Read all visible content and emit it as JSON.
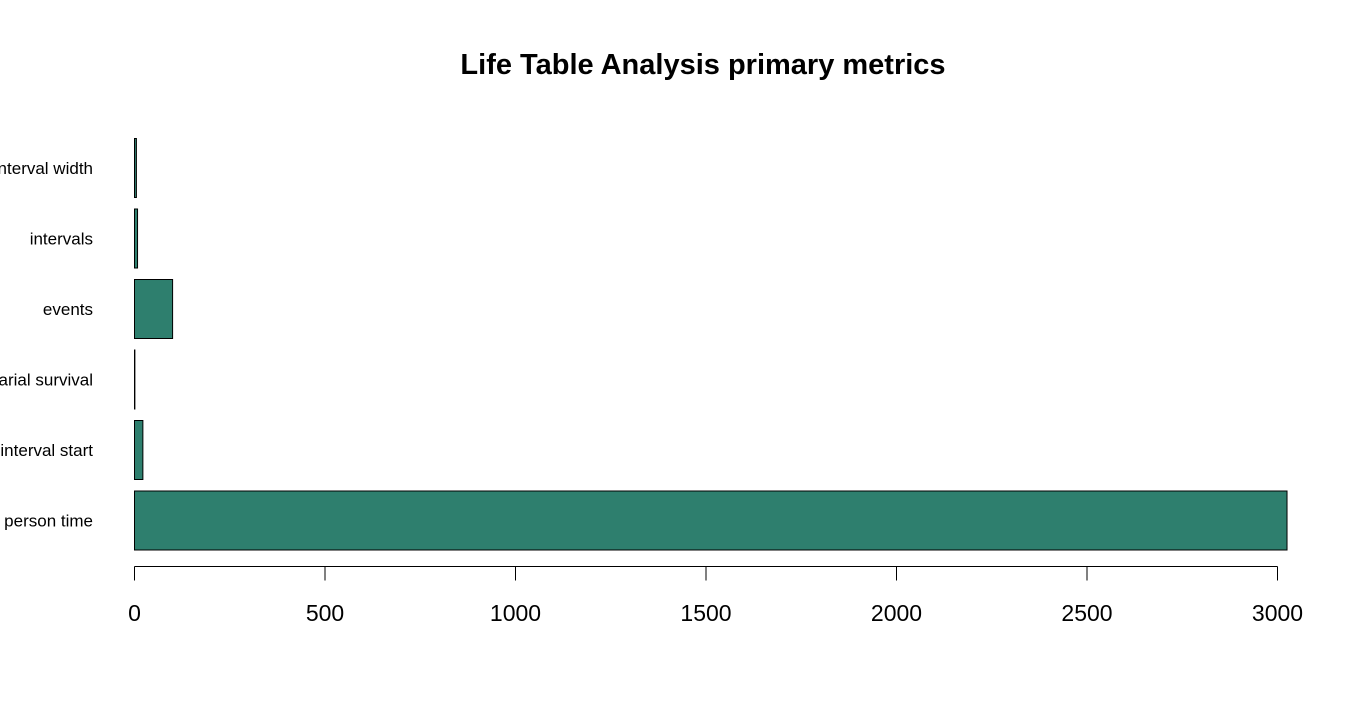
{
  "chart_data": {
    "type": "bar",
    "orientation": "horizontal",
    "title": "Life Table Analysis primary metrics",
    "xlabel": "",
    "ylabel": "",
    "categories": [
      "person time",
      "interval start",
      "arial survival",
      "events",
      "intervals",
      "interval width"
    ],
    "values": [
      3025,
      22,
      1,
      100,
      8,
      5
    ],
    "xlim": [
      0,
      3000
    ],
    "xticks": [
      0,
      500,
      1000,
      1500,
      2000,
      2500,
      3000
    ],
    "grid": false,
    "legend": "none",
    "bar_color": "#2e7f6e",
    "bar_border_color": "#000000"
  }
}
